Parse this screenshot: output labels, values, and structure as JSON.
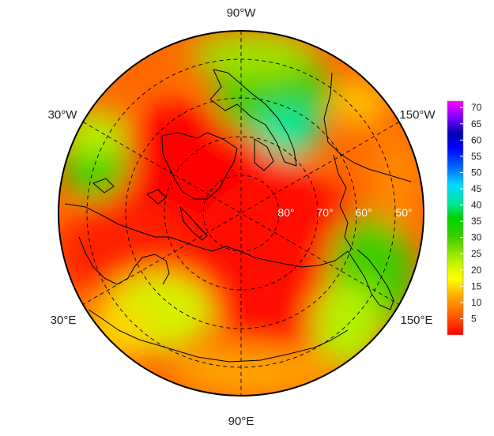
{
  "map": {
    "projection": "north-polar-stereographic",
    "longitude_labels": [
      {
        "key": "top",
        "text": "90°W"
      },
      {
        "key": "upper-left",
        "text": "30°W"
      },
      {
        "key": "upper-right",
        "text": "150°W"
      },
      {
        "key": "lower-left",
        "text": "30°E"
      },
      {
        "key": "lower-right",
        "text": "150°E"
      },
      {
        "key": "bottom",
        "text": "90°E"
      }
    ],
    "latitude_labels": [
      "80°",
      "70°",
      "60°",
      "50°"
    ],
    "colorbar": {
      "ticks": [
        "70",
        "65",
        "60",
        "55",
        "50",
        "45",
        "40",
        "35",
        "30",
        "25",
        "20",
        "15",
        "10",
        "5"
      ],
      "range": [
        0,
        72
      ],
      "colors": [
        "#ff0000",
        "#ff5a00",
        "#ffa500",
        "#ffff00",
        "#b4f000",
        "#3ccd00",
        "#00d200",
        "#00e696",
        "#00dcff",
        "#0064ff",
        "#0000ff",
        "#0000b4",
        "#7d00ff",
        "#ff00ff"
      ]
    }
  }
}
